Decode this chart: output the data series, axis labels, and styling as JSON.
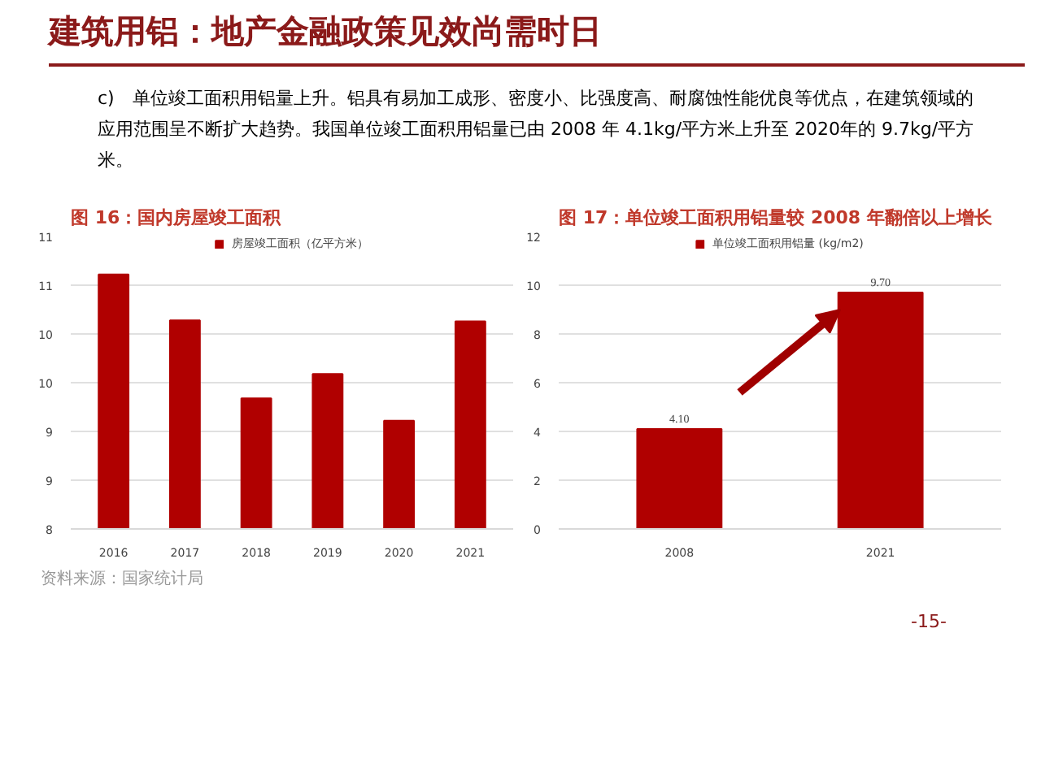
{
  "chart_data": [
    {
      "type": "other",
      "title": "建筑用铝：地产金融政策见效尚需时日",
      "annotations": [
        "c)　单位竣工面积用铝量上升。铝具有易加工成形、密度小、比强度高、耐腐蚀性能优良等优点，在建筑领域的应用范围呈不断扩大趋势。我国单位竣工面积用铝量已由 2008 年 4.1kg/平方米上升至 2020年的 9.7kg/平方米。",
        "-15-"
      ]
    },
    {
      "type": "bar",
      "title": "图 16：国内房屋竣工面积",
      "categories": [
        "2016",
        "2017",
        "2018",
        "2019",
        "2020",
        "2021"
      ],
      "series": [
        {
          "name": "房屋竣工面积（亿平方米）",
          "color": "#b00000",
          "values": [
            10.61,
            10.14,
            9.34,
            9.59,
            9.11,
            10.13
          ]
        }
      ],
      "ylim": [
        8,
        11
      ],
      "yticks": [
        8,
        {
          "value": 8.5,
          "label": "9"
        },
        9,
        {
          "value": 9.5,
          "label": "10"
        },
        10,
        {
          "value": 10.5,
          "label": "11"
        },
        11
      ],
      "grid": "y",
      "legend": "top",
      "annotations": [
        "资料来源：国家统计局"
      ]
    },
    {
      "type": "bar",
      "title": "图 17：单位竣工面积用铝量较 2008 年翻倍以上增长",
      "categories": [
        "2008",
        "2021"
      ],
      "series": [
        {
          "name": "单位竣工面积用铝量 (kg/m2)",
          "color": "#b00000",
          "values": [
            4.1,
            9.7
          ],
          "value_labels": [
            "4.10",
            "9.70"
          ]
        }
      ],
      "ylim": [
        0,
        12
      ],
      "yticks": [
        0,
        2,
        4,
        6,
        8,
        10,
        12
      ],
      "grid": "y",
      "legend": "top"
    }
  ]
}
